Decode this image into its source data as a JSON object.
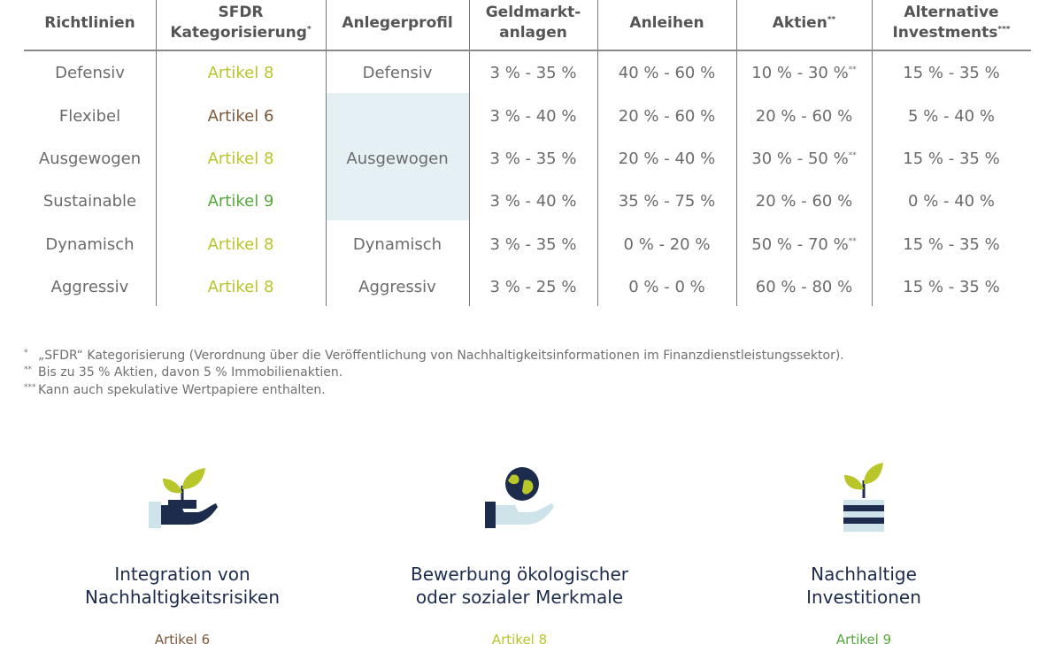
{
  "colors": {
    "artikel6": "#7b5a3a",
    "artikel8": "#b8c62a",
    "artikel9": "#55a83a",
    "navy": "#1d2c4c",
    "shade": "#e4f0f4",
    "leaf": "#b8c62a",
    "lightblue": "#cfe3ea"
  },
  "table": {
    "headers": {
      "richtlinien": "Richtlinien",
      "sfdr_1": "SFDR",
      "sfdr_2": "Kategorisierung",
      "sfdr_mark": "*",
      "anlegerprofil": "Anlegerprofil",
      "geldmarkt_1": "Geldmarkt-",
      "geldmarkt_2": "anlagen",
      "anleihen": "Anleihen",
      "aktien": "Aktien",
      "aktien_mark": "**",
      "alt_1": "Alternative",
      "alt_2": "Investments",
      "alt_mark": "***"
    },
    "rows": [
      {
        "richtlinie": "Defensiv",
        "sfdr": "Artikel 8",
        "sfdr_color": "artikel8",
        "profil": "Defensiv",
        "geldmarkt": "3 % - 35 %",
        "anleihen": "40 % - 60 %",
        "aktien": "10 % - 30 %",
        "aktien_mark": "**",
        "alternative": "15 % - 35 %"
      },
      {
        "richtlinie": "Flexibel",
        "sfdr": "Artikel 6",
        "sfdr_color": "artikel6",
        "profil": "",
        "geldmarkt": "3 % - 40 %",
        "anleihen": "20 % - 60 %",
        "aktien": "20 % - 60 %",
        "aktien_mark": "",
        "alternative": "5 % - 40 %"
      },
      {
        "richtlinie": "Ausgewogen",
        "sfdr": "Artikel 8",
        "sfdr_color": "artikel8",
        "profil": "Ausgewogen",
        "geldmarkt": "3 % - 35 %",
        "anleihen": "20 % - 40 %",
        "aktien": "30 % - 50 %",
        "aktien_mark": "**",
        "alternative": "15 % - 35 %"
      },
      {
        "richtlinie": "Sustainable",
        "sfdr": "Artikel 9",
        "sfdr_color": "artikel9",
        "profil": "",
        "geldmarkt": "3 % - 40 %",
        "anleihen": "35 % - 75 %",
        "aktien": "20 % - 60 %",
        "aktien_mark": "",
        "alternative": "0 % - 40 %"
      },
      {
        "richtlinie": "Dynamisch",
        "sfdr": "Artikel 8",
        "sfdr_color": "artikel8",
        "profil": "Dynamisch",
        "geldmarkt": "3 % - 35 %",
        "anleihen": "0 % - 20 %",
        "aktien": "50 % - 70 %",
        "aktien_mark": "**",
        "alternative": "15 % - 35 %"
      },
      {
        "richtlinie": "Aggressiv",
        "sfdr": "Artikel 8",
        "sfdr_color": "artikel8",
        "profil": "Aggressiv",
        "geldmarkt": "3 % - 25 %",
        "anleihen": "0 % - 0 %",
        "aktien": "60 % - 80 %",
        "aktien_mark": "",
        "alternative": "15 % - 35 %"
      }
    ]
  },
  "footnotes": [
    {
      "mark": "*",
      "text": "„SFDR“ Kategorisierung (Verordnung über die Veröffentlichung von Nachhaltigkeitsinformationen im Finanzdienstleistungssektor)."
    },
    {
      "mark": "**",
      "text": "Bis zu 35 % Aktien, davon 5 % Immobilienaktien."
    },
    {
      "mark": "***",
      "text": "Kann auch spekulative Wertpapiere enthalten."
    }
  ],
  "categories": [
    {
      "icon": "plant-in-hand-icon",
      "title_1": "Integration von",
      "title_2": "Nachhaltigkeitsrisiken",
      "artikel": "Artikel 6",
      "color": "artikel6"
    },
    {
      "icon": "globe-in-hand-icon",
      "title_1": "Bewerbung ökologischer",
      "title_2": "oder sozialer Merkmale",
      "artikel": "Artikel 8",
      "color": "artikel8"
    },
    {
      "icon": "plant-on-coins-icon",
      "title_1": "Nachhaltige",
      "title_2": "Investitionen",
      "artikel": "Artikel 9",
      "color": "artikel9"
    }
  ]
}
